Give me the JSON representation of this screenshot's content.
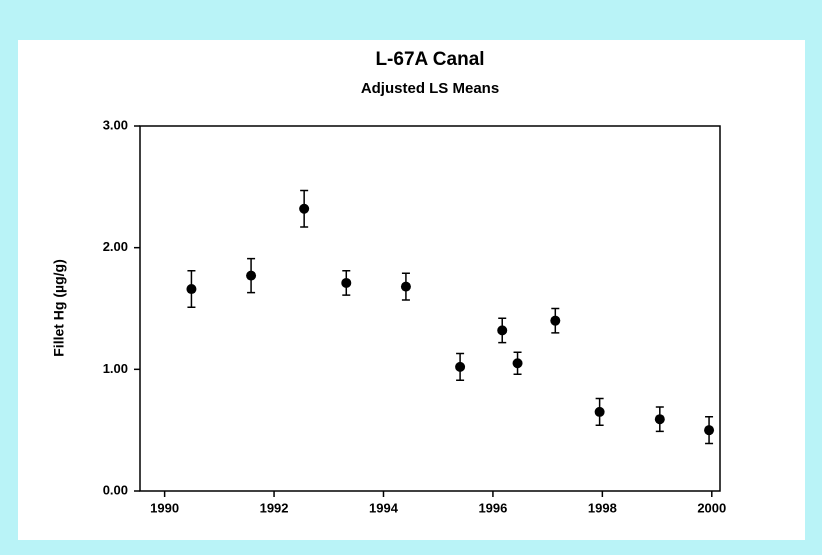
{
  "chart_data": {
    "type": "scatter",
    "title": "L-67A Canal",
    "subtitle": "Adjusted LS Means",
    "y_label": "Fillet Hg (µg/g)",
    "series": [
      {
        "color": "#000000",
        "x": [
          1990.49,
          1991.58,
          1992.55,
          1993.32,
          1994.41,
          1995.4,
          1996.17,
          1996.45,
          1997.14,
          1997.95,
          1999.05,
          1999.95
        ],
        "values": [
          1.66,
          1.77,
          2.32,
          1.71,
          1.68,
          1.02,
          1.32,
          1.05,
          1.4,
          0.65,
          0.59,
          0.5
        ],
        "errors": [
          0.15,
          0.14,
          0.15,
          0.1,
          0.11,
          0.11,
          0.1,
          0.09,
          0.1,
          0.11,
          0.1,
          0.11
        ]
      }
    ],
    "xlim": [
      1989.55,
      2000.15
    ],
    "xticks": [
      1990,
      1992,
      1994,
      1996,
      1998,
      2000
    ],
    "ylim": [
      0,
      3
    ],
    "yticks": [
      {
        "value": 0,
        "label": "0.00"
      },
      {
        "value": 1,
        "label": "1.00"
      },
      {
        "value": 2,
        "label": "2.00"
      },
      {
        "value": 3,
        "label": "3.00"
      }
    ]
  }
}
